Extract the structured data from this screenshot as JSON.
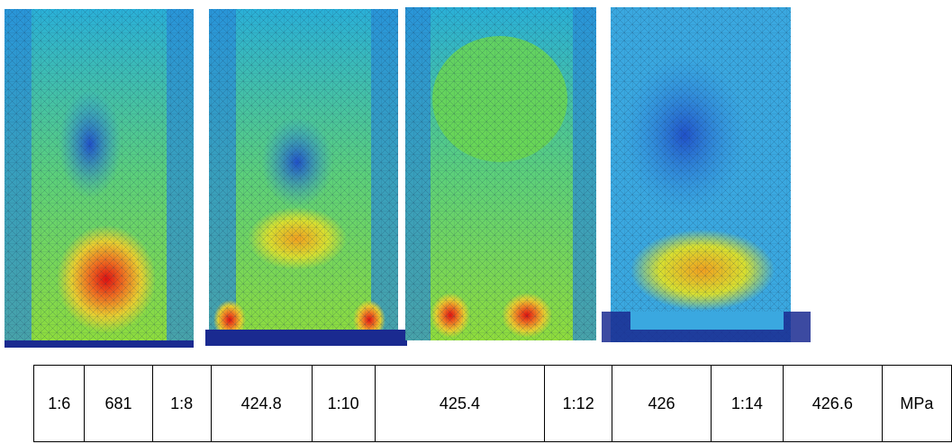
{
  "table": {
    "rows": [
      [
        "1:6",
        "681",
        "1:8",
        "424.8",
        "1:10",
        "425.4",
        "1:12",
        "426",
        "1:14",
        "426.6",
        "MPa"
      ]
    ]
  }
}
